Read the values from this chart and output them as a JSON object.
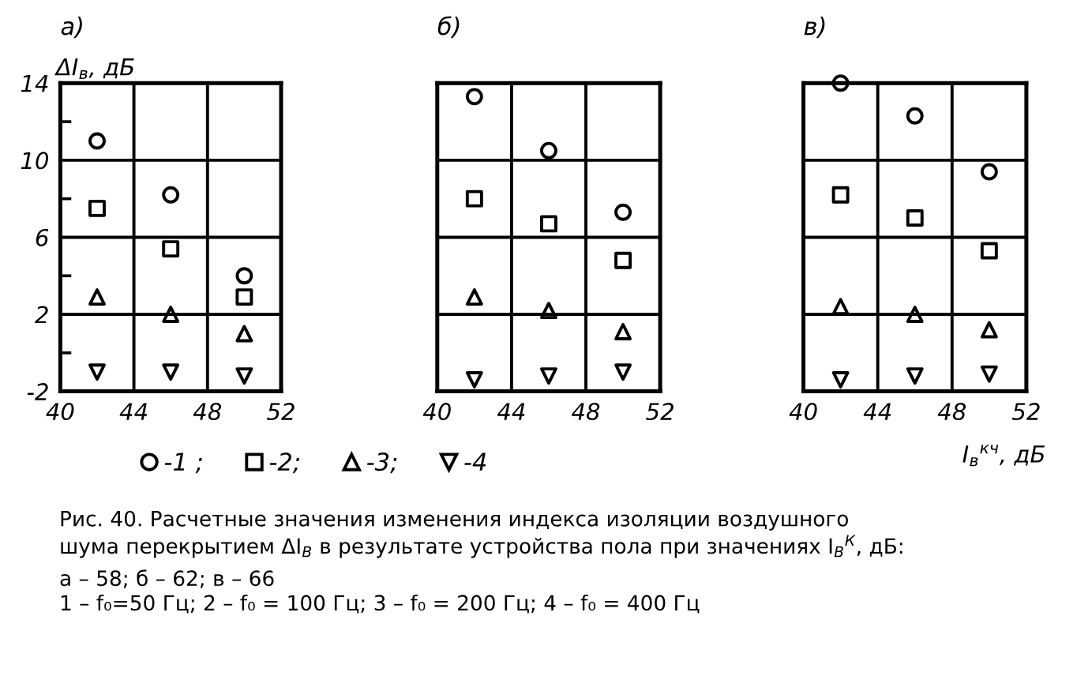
{
  "chart_data": [
    {
      "type": "scatter",
      "title": "а)",
      "ylabel": "ΔI$_{в}$, дБ",
      "x": [
        42,
        46,
        50
      ],
      "xlim": [
        40,
        52
      ],
      "ylim": [
        -2,
        14
      ],
      "xticks": [
        40,
        44,
        48,
        52
      ],
      "yticks": [
        -2,
        {
          "value": 0,
          "label": null
        },
        2,
        {
          "value": 4,
          "label": null
        },
        6,
        {
          "value": 8,
          "label": null
        },
        10,
        {
          "value": 12,
          "label": null
        },
        14
      ],
      "grid": true,
      "legend": "bottom",
      "series": [
        {
          "name": "-1 ;",
          "color": "#000000",
          "marker": "circle",
          "values": [
            11.0,
            8.2,
            4.0
          ]
        },
        {
          "name": "-2;",
          "color": "#000000",
          "marker": "square",
          "values": [
            7.5,
            5.4,
            2.9
          ]
        },
        {
          "name": "-3;",
          "color": "#000000",
          "marker": "triangle",
          "values": [
            2.9,
            2.0,
            1.0
          ]
        },
        {
          "name": "-4",
          "color": "#000000",
          "marker": "triangle_down",
          "values": [
            -1.0,
            -1.0,
            -1.2
          ]
        }
      ],
      "annotations": [
        "Рис. 40. Расчетные значения изменения индекса изоляции воздушного",
        "шума перекрытием ΔI$_{В}$ в результате устройства пола при значениях I$_{В}$$^{К}$, дБ:",
        "а – 58; б – 62; в – 66",
        "1 – f₀=50 Гц; 2 – f₀ = 100 Гц; 3 – f₀ = 200 Гц; 4 – f₀ = 400 Гц"
      ]
    },
    {
      "type": "scatter",
      "title": "б)",
      "x": [
        42,
        46,
        50
      ],
      "xlim": [
        40,
        52
      ],
      "ylim": [
        -2,
        14
      ],
      "xticks": [
        40,
        44,
        48,
        52
      ],
      "yticks": [
        -2,
        2,
        6,
        10,
        14
      ],
      "tick_labels": "x",
      "grid": true,
      "series": [
        {
          "color": "#000000",
          "marker": "circle",
          "values": [
            13.3,
            10.5,
            7.3
          ]
        },
        {
          "color": "#000000",
          "marker": "square",
          "values": [
            8.0,
            6.7,
            4.8
          ]
        },
        {
          "color": "#000000",
          "marker": "triangle",
          "values": [
            2.9,
            2.2,
            1.1
          ]
        },
        {
          "color": "#000000",
          "marker": "triangle_down",
          "values": [
            -1.4,
            -1.2,
            -1.0
          ]
        }
      ]
    },
    {
      "type": "scatter",
      "title": "в)",
      "xlabel": "I$_{в}$$^{кч}$, дБ",
      "x": [
        42,
        46,
        50
      ],
      "xlim": [
        40,
        52
      ],
      "ylim": [
        -2,
        14
      ],
      "xticks": [
        40,
        44,
        48,
        52
      ],
      "yticks": [
        -2,
        2,
        6,
        10,
        14
      ],
      "tick_labels": "x",
      "grid": true,
      "series": [
        {
          "color": "#000000",
          "marker": "circle",
          "values": [
            14.0,
            12.3,
            9.4
          ]
        },
        {
          "color": "#000000",
          "marker": "square",
          "values": [
            8.2,
            7.0,
            5.3
          ]
        },
        {
          "color": "#000000",
          "marker": "triangle",
          "values": [
            2.4,
            2.0,
            1.2
          ]
        },
        {
          "color": "#000000",
          "marker": "triangle_down",
          "values": [
            -1.4,
            -1.2,
            -1.1
          ]
        }
      ]
    }
  ]
}
